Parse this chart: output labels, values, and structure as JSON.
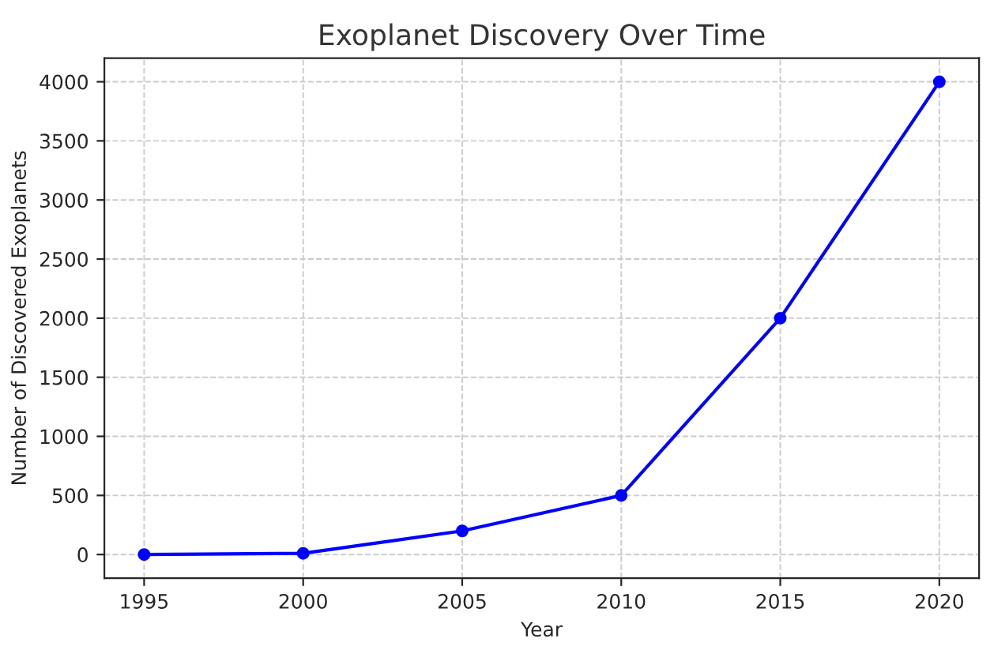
{
  "chart_data": {
    "type": "line",
    "title": "Exoplanet Discovery Over Time",
    "xlabel": "Year",
    "ylabel": "Number of Discovered Exoplanets",
    "x": [
      1995,
      2000,
      2005,
      2010,
      2015,
      2020
    ],
    "series": [
      {
        "color": "#0000ff",
        "values": [
          0,
          10,
          200,
          500,
          2000,
          4000
        ]
      }
    ],
    "xlim": [
      1993.75,
      2021.25
    ],
    "xticks": [
      1995,
      2000,
      2005,
      2010,
      2015,
      2020
    ],
    "ylim": [
      -200,
      4200
    ],
    "yticks": [
      0,
      500,
      1000,
      1500,
      2000,
      2500,
      3000,
      3500,
      4000
    ],
    "grid": true,
    "marker": "circle",
    "line_style": "solid"
  }
}
